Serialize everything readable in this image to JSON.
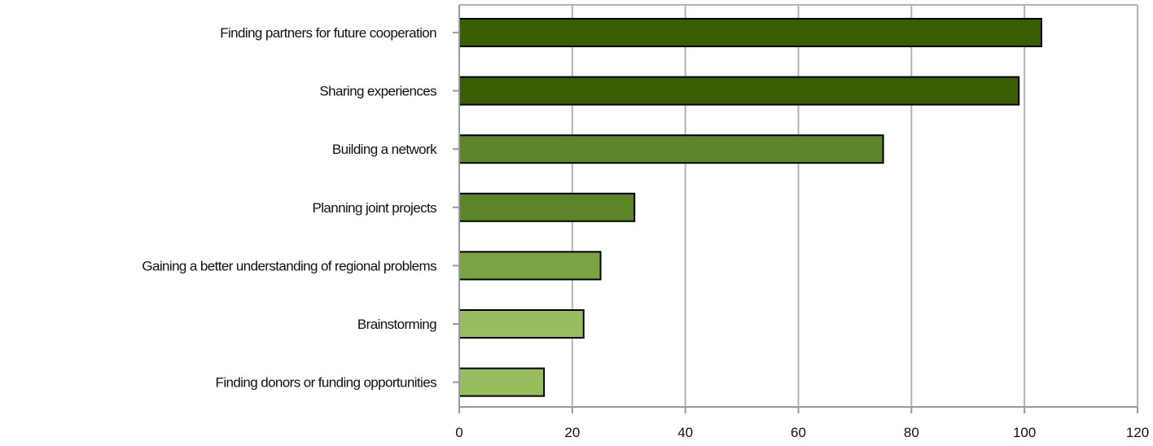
{
  "chart_data": {
    "type": "bar",
    "orientation": "horizontal",
    "title": "",
    "xlabel": "",
    "ylabel": "",
    "categories": [
      "Finding partners for future cooperation",
      "Sharing experiences",
      "Building a network",
      "Planning joint projects",
      "Gaining a better understanding of regional problems",
      "Brainstorming",
      "Finding donors or funding opportunities"
    ],
    "values": [
      103,
      99,
      75,
      31,
      25,
      22,
      15
    ],
    "bar_colors": [
      "#375e00",
      "#375e00",
      "#5b8528",
      "#5b8528",
      "#7aa344",
      "#96be5f",
      "#96be5f"
    ],
    "xlim": [
      0,
      120
    ],
    "xticks": [
      0,
      20,
      40,
      60,
      80,
      100,
      120
    ],
    "grid": true,
    "legend": false
  }
}
